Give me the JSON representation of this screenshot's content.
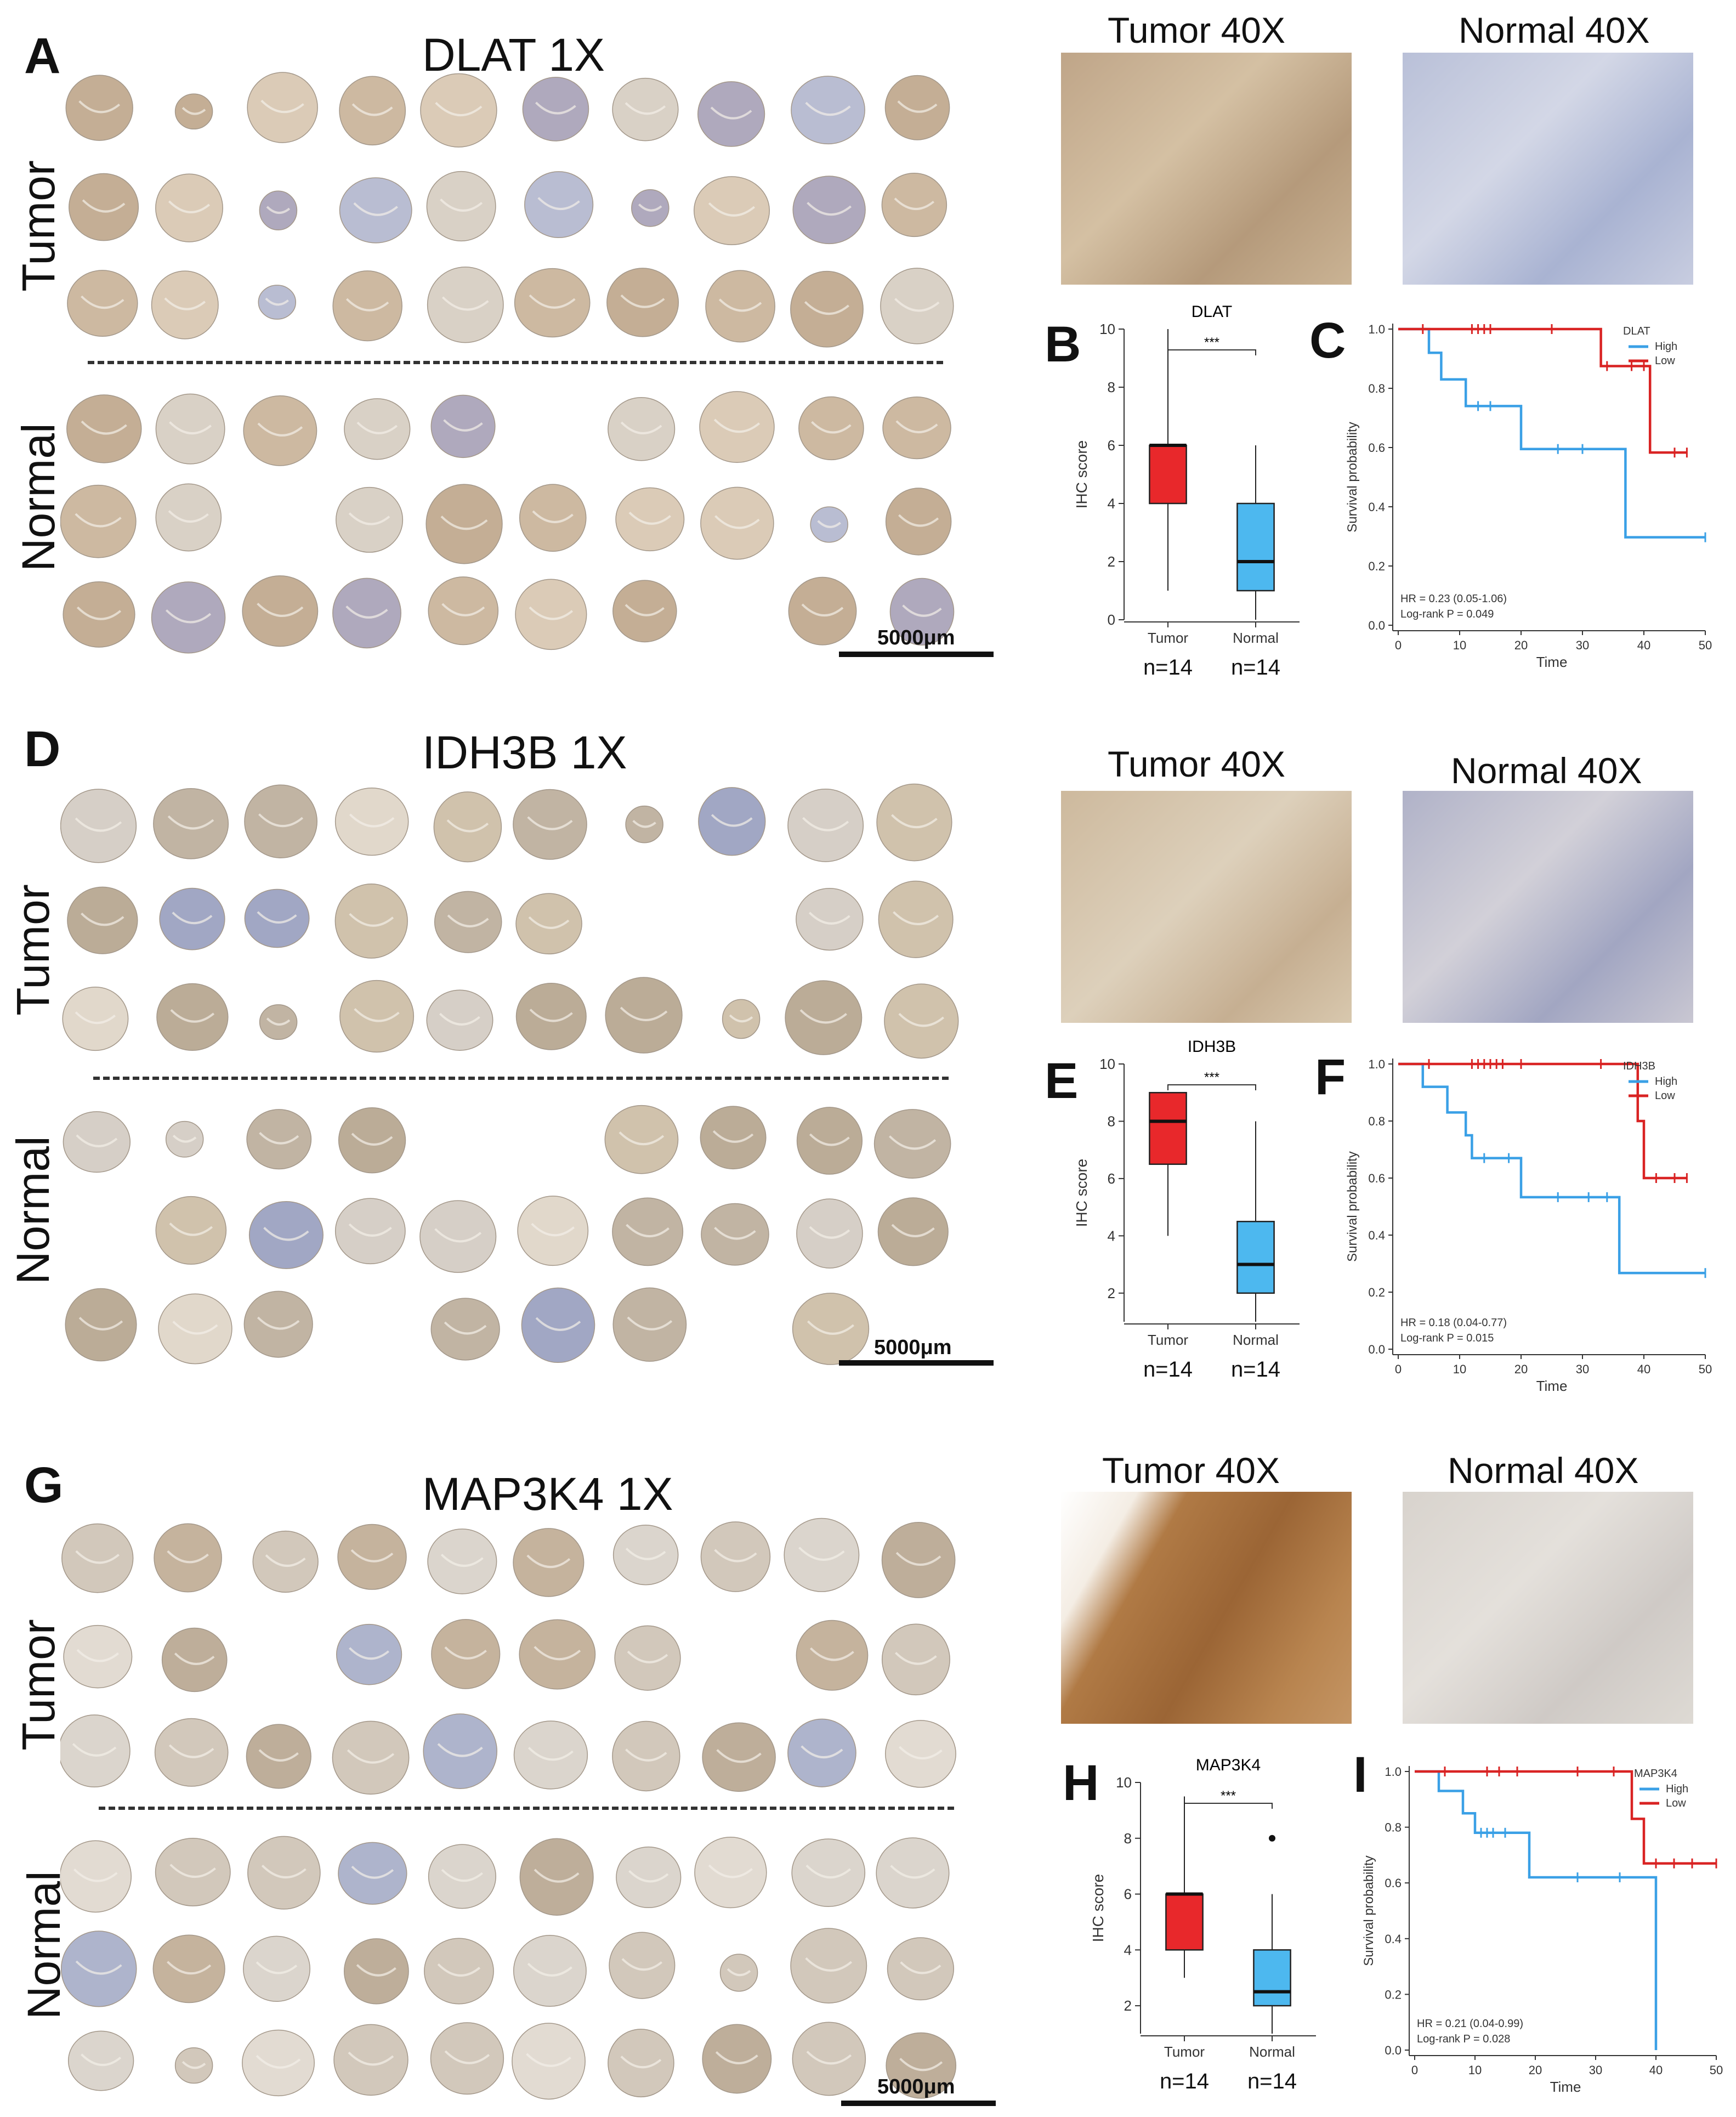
{
  "blocks": [
    {
      "letter_left": "A",
      "title": "DLAT 1X",
      "tumor_label": "Tumor",
      "normal_label": "Normal",
      "scale_label": "5000μm",
      "tumor40_label": "Tumor 40X",
      "normal40_label": "Normal 40X",
      "box_letter": "B",
      "km_letter": "C",
      "cores": {
        "tumor_rows": 3,
        "normal_rows": 3,
        "cols": 10
      }
    },
    {
      "letter_left": "D",
      "title": "IDH3B 1X",
      "tumor_label": "Tumor",
      "normal_label": "Normal",
      "scale_label": "5000μm",
      "tumor40_label": "Tumor 40X",
      "normal40_label": "Normal 40X",
      "box_letter": "E",
      "km_letter": "F",
      "cores": {
        "tumor_rows": 3,
        "normal_rows": 3,
        "cols": 10
      }
    },
    {
      "letter_left": "G",
      "title": "MAP3K4 1X",
      "tumor_label": "Tumor",
      "normal_label": "Normal",
      "scale_label": "5000μm",
      "tumor40_label": "Tumor 40X",
      "normal40_label": "Normal 40X",
      "box_letter": "H",
      "km_letter": "I",
      "cores": {
        "tumor_rows": 3,
        "normal_rows": 3,
        "cols": 10
      }
    }
  ],
  "chart_data": [
    {
      "type": "box",
      "title": "DLAT",
      "ylabel": "IHC score",
      "ylim": [
        0,
        10
      ],
      "yticks": [
        0,
        2,
        4,
        6,
        8,
        10
      ],
      "significance": "***",
      "categories": [
        "Tumor",
        "Normal"
      ],
      "n_labels": [
        "n=14",
        "n=14"
      ],
      "boxes": [
        {
          "name": "Tumor",
          "color": "#e8282b",
          "min": 1,
          "q1": 4,
          "median": 6,
          "q3": 6,
          "max": 10,
          "outliers": []
        },
        {
          "name": "Normal",
          "color": "#4db8ef",
          "min": 0,
          "q1": 1,
          "median": 2,
          "q3": 4,
          "max": 6,
          "outliers": []
        }
      ]
    },
    {
      "type": "line",
      "subtype": "kaplan-meier",
      "xlabel": "Time",
      "ylabel": "Survival probability",
      "xlim": [
        0,
        50
      ],
      "ylim": [
        0,
        1
      ],
      "xticks": [
        0,
        10,
        20,
        30,
        40,
        50
      ],
      "yticks": [
        "0.0",
        "0.2",
        "0.4",
        "0.6",
        "0.8",
        "1.0"
      ],
      "legend_title": "DLAT",
      "legend_position": "top-right",
      "hr_text": "HR = 0.23 (0.05-1.06)",
      "p_text": "Log-rank P = 0.049",
      "series": [
        {
          "name": "High",
          "color": "#3aa0e6",
          "steps": [
            [
              0,
              1.0
            ],
            [
              5,
              0.92
            ],
            [
              7,
              0.83
            ],
            [
              11,
              0.74
            ],
            [
              20,
              0.595
            ],
            [
              37,
              0.297
            ],
            [
              50,
              0.297
            ]
          ],
          "censors": [
            [
              13,
              0.74
            ],
            [
              15,
              0.74
            ],
            [
              26,
              0.595
            ],
            [
              30,
              0.595
            ],
            [
              50,
              0.297
            ]
          ]
        },
        {
          "name": "Low",
          "color": "#d92323",
          "steps": [
            [
              0,
              1.0
            ],
            [
              33,
              0.875
            ],
            [
              41,
              0.583
            ],
            [
              47,
              0.583
            ]
          ],
          "censors": [
            [
              4,
              1.0
            ],
            [
              12,
              1.0
            ],
            [
              13,
              1.0
            ],
            [
              14,
              1.0
            ],
            [
              15,
              1.0
            ],
            [
              25,
              1.0
            ],
            [
              34,
              0.875
            ],
            [
              38,
              0.875
            ],
            [
              40,
              0.875
            ],
            [
              45,
              0.583
            ],
            [
              47,
              0.583
            ]
          ]
        }
      ]
    },
    {
      "type": "box",
      "title": "IDH3B",
      "ylabel": "IHC score",
      "ylim": [
        1,
        10
      ],
      "yticks": [
        2,
        4,
        6,
        8,
        10
      ],
      "significance": "***",
      "categories": [
        "Tumor",
        "Normal"
      ],
      "n_labels": [
        "n=14",
        "n=14"
      ],
      "boxes": [
        {
          "name": "Tumor",
          "color": "#e8282b",
          "min": 4,
          "q1": 6.5,
          "median": 8,
          "q3": 9,
          "max": 9,
          "outliers": []
        },
        {
          "name": "Normal",
          "color": "#4db8ef",
          "min": 1,
          "q1": 2,
          "median": 3,
          "q3": 4.5,
          "max": 8,
          "outliers": []
        }
      ]
    },
    {
      "type": "line",
      "subtype": "kaplan-meier",
      "xlabel": "Time",
      "ylabel": "Survival probability",
      "xlim": [
        0,
        50
      ],
      "ylim": [
        0,
        1
      ],
      "xticks": [
        0,
        10,
        20,
        30,
        40,
        50
      ],
      "yticks": [
        "0.0",
        "0.2",
        "0.4",
        "0.6",
        "0.8",
        "1.0"
      ],
      "legend_title": "IDH3B",
      "legend_position": "top-right",
      "hr_text": "HR = 0.18 (0.04-0.77)",
      "p_text": "Log-rank P = 0.015",
      "series": [
        {
          "name": "High",
          "color": "#3aa0e6",
          "steps": [
            [
              0,
              1.0
            ],
            [
              4,
              0.92
            ],
            [
              8,
              0.83
            ],
            [
              11,
              0.75
            ],
            [
              12,
              0.67
            ],
            [
              20,
              0.533
            ],
            [
              36,
              0.267
            ],
            [
              50,
              0.267
            ]
          ],
          "censors": [
            [
              14,
              0.67
            ],
            [
              18,
              0.67
            ],
            [
              26,
              0.533
            ],
            [
              31,
              0.533
            ],
            [
              34,
              0.533
            ],
            [
              50,
              0.267
            ]
          ]
        },
        {
          "name": "Low",
          "color": "#d92323",
          "steps": [
            [
              0,
              1.0
            ],
            [
              39,
              0.8
            ],
            [
              40,
              0.6
            ],
            [
              47,
              0.6
            ]
          ],
          "censors": [
            [
              5,
              1.0
            ],
            [
              12,
              1.0
            ],
            [
              13,
              1.0
            ],
            [
              14,
              1.0
            ],
            [
              15,
              1.0
            ],
            [
              16,
              1.0
            ],
            [
              17,
              1.0
            ],
            [
              20,
              1.0
            ],
            [
              33,
              1.0
            ],
            [
              42,
              0.6
            ],
            [
              45,
              0.6
            ],
            [
              47,
              0.6
            ]
          ]
        }
      ]
    },
    {
      "type": "box",
      "title": "MAP3K4",
      "ylabel": "IHC score",
      "ylim": [
        1,
        10
      ],
      "yticks": [
        2,
        4,
        6,
        8,
        10
      ],
      "significance": "***",
      "categories": [
        "Tumor",
        "Normal"
      ],
      "n_labels": [
        "n=14",
        "n=14"
      ],
      "boxes": [
        {
          "name": "Tumor",
          "color": "#e8282b",
          "min": 3,
          "q1": 4,
          "median": 6,
          "q3": 6,
          "max": 9.5,
          "outliers": []
        },
        {
          "name": "Normal",
          "color": "#4db8ef",
          "min": 1,
          "q1": 2,
          "median": 2.5,
          "q3": 4,
          "max": 6,
          "outliers": [
            8
          ]
        }
      ]
    },
    {
      "type": "line",
      "subtype": "kaplan-meier",
      "xlabel": "Time",
      "ylabel": "Survival probability",
      "xlim": [
        0,
        50
      ],
      "ylim": [
        0,
        1
      ],
      "xticks": [
        0,
        10,
        20,
        30,
        40,
        50
      ],
      "yticks": [
        "0.0",
        "0.2",
        "0.4",
        "0.6",
        "0.8",
        "1.0"
      ],
      "legend_title": "MAP3K4",
      "legend_position": "top-right",
      "hr_text": "HR = 0.21 (0.04-0.99)",
      "p_text": "Log-rank P = 0.028",
      "series": [
        {
          "name": "High",
          "color": "#3aa0e6",
          "steps": [
            [
              0,
              1.0
            ],
            [
              4,
              0.93
            ],
            [
              8,
              0.85
            ],
            [
              10,
              0.78
            ],
            [
              19,
              0.62
            ],
            [
              40,
              0.0
            ]
          ],
          "censors": [
            [
              11,
              0.78
            ],
            [
              12,
              0.78
            ],
            [
              13,
              0.78
            ],
            [
              15,
              0.78
            ],
            [
              27,
              0.62
            ],
            [
              34,
              0.62
            ]
          ]
        },
        {
          "name": "Low",
          "color": "#d92323",
          "steps": [
            [
              0,
              1.0
            ],
            [
              36,
              0.83
            ],
            [
              38,
              0.67
            ],
            [
              50,
              0.67
            ]
          ],
          "censors": [
            [
              5,
              1.0
            ],
            [
              12,
              1.0
            ],
            [
              14,
              1.0
            ],
            [
              17,
              1.0
            ],
            [
              27,
              1.0
            ],
            [
              33,
              1.0
            ],
            [
              40,
              0.67
            ],
            [
              43,
              0.67
            ],
            [
              46,
              0.67
            ],
            [
              50,
              0.67
            ]
          ]
        }
      ]
    }
  ]
}
